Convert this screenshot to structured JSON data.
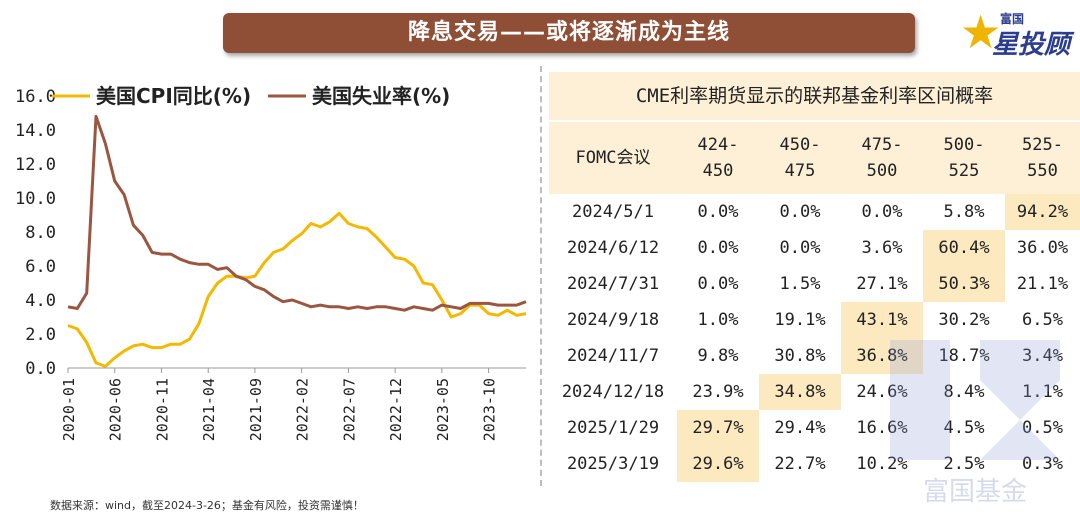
{
  "header": {
    "title": "降息交易——或将逐渐成为主线"
  },
  "brand": {
    "top": "富国",
    "main": "星投顾",
    "watermark": "富国基金"
  },
  "source": "数据来源：wind，截至2024-3-26；基金有风险，投资需谨慎！",
  "colors": {
    "cpi": "#f5b800",
    "unemployment": "#9a5640",
    "title_bg": "#8e4f36",
    "table_hl": "#fde9c0"
  },
  "chart_data": {
    "type": "line",
    "legend_position": "top-left",
    "ylim": [
      0,
      16
    ],
    "yticks": [
      "0.0",
      "2.0",
      "4.0",
      "6.0",
      "8.0",
      "10.0",
      "12.0",
      "14.0",
      "16.0"
    ],
    "xticks": [
      "2020-01",
      "2020-06",
      "2020-11",
      "2021-04",
      "2021-09",
      "2022-02",
      "2022-07",
      "2022-12",
      "2023-05",
      "2023-10"
    ],
    "x": [
      "2020-01",
      "2020-02",
      "2020-03",
      "2020-04",
      "2020-05",
      "2020-06",
      "2020-07",
      "2020-08",
      "2020-09",
      "2020-10",
      "2020-11",
      "2020-12",
      "2021-01",
      "2021-02",
      "2021-03",
      "2021-04",
      "2021-05",
      "2021-06",
      "2021-07",
      "2021-08",
      "2021-09",
      "2021-10",
      "2021-11",
      "2021-12",
      "2022-01",
      "2022-02",
      "2022-03",
      "2022-04",
      "2022-05",
      "2022-06",
      "2022-07",
      "2022-08",
      "2022-09",
      "2022-10",
      "2022-11",
      "2022-12",
      "2023-01",
      "2023-02",
      "2023-03",
      "2023-04",
      "2023-05",
      "2023-06",
      "2023-07",
      "2023-08",
      "2023-09",
      "2023-10",
      "2023-11",
      "2023-12",
      "2024-01",
      "2024-02"
    ],
    "series": [
      {
        "name": "美国CPI同比(%)",
        "values": [
          2.5,
          2.3,
          1.5,
          0.3,
          0.1,
          0.6,
          1.0,
          1.3,
          1.4,
          1.2,
          1.2,
          1.4,
          1.4,
          1.7,
          2.6,
          4.2,
          5.0,
          5.4,
          5.4,
          5.3,
          5.4,
          6.2,
          6.8,
          7.0,
          7.5,
          7.9,
          8.5,
          8.3,
          8.6,
          9.1,
          8.5,
          8.3,
          8.2,
          7.7,
          7.1,
          6.5,
          6.4,
          6.0,
          5.0,
          4.9,
          4.0,
          3.0,
          3.2,
          3.7,
          3.7,
          3.2,
          3.1,
          3.4,
          3.1,
          3.2
        ]
      },
      {
        "name": "美国失业率(%)",
        "values": [
          3.6,
          3.5,
          4.4,
          14.8,
          13.2,
          11.0,
          10.2,
          8.4,
          7.8,
          6.8,
          6.7,
          6.7,
          6.4,
          6.2,
          6.1,
          6.1,
          5.8,
          5.9,
          5.4,
          5.2,
          4.8,
          4.6,
          4.2,
          3.9,
          4.0,
          3.8,
          3.6,
          3.7,
          3.6,
          3.6,
          3.5,
          3.6,
          3.5,
          3.6,
          3.6,
          3.5,
          3.4,
          3.6,
          3.5,
          3.4,
          3.7,
          3.6,
          3.5,
          3.8,
          3.8,
          3.8,
          3.7,
          3.7,
          3.7,
          3.9
        ]
      }
    ]
  },
  "table": {
    "title": "CME利率期货显示的联邦基金利率区间概率",
    "header": [
      "FOMC会议",
      "424-\n450",
      "450-\n475",
      "475-\n500",
      "500-\n525",
      "525-\n550"
    ],
    "rows": [
      {
        "date": "2024/5/1",
        "cells": [
          "0.0%",
          "0.0%",
          "0.0%",
          "5.8%",
          "94.2%"
        ],
        "hl": 4
      },
      {
        "date": "2024/6/12",
        "cells": [
          "0.0%",
          "0.0%",
          "3.6%",
          "60.4%",
          "36.0%"
        ],
        "hl": 3
      },
      {
        "date": "2024/7/31",
        "cells": [
          "0.0%",
          "1.5%",
          "27.1%",
          "50.3%",
          "21.1%"
        ],
        "hl": 3
      },
      {
        "date": "2024/9/18",
        "cells": [
          "1.0%",
          "19.1%",
          "43.1%",
          "30.2%",
          "6.5%"
        ],
        "hl": 2
      },
      {
        "date": "2024/11/7",
        "cells": [
          "9.8%",
          "30.8%",
          "36.8%",
          "18.7%",
          "3.4%"
        ],
        "hl": 2
      },
      {
        "date": "2024/12/18",
        "cells": [
          "23.9%",
          "34.8%",
          "24.6%",
          "8.4%",
          "1.1%"
        ],
        "hl": 1
      },
      {
        "date": "2025/1/29",
        "cells": [
          "29.7%",
          "29.4%",
          "16.6%",
          "4.5%",
          "0.5%"
        ],
        "hl": 0
      },
      {
        "date": "2025/3/19",
        "cells": [
          "29.6%",
          "22.7%",
          "10.2%",
          "2.5%",
          "0.3%"
        ],
        "hl": 0
      }
    ]
  }
}
